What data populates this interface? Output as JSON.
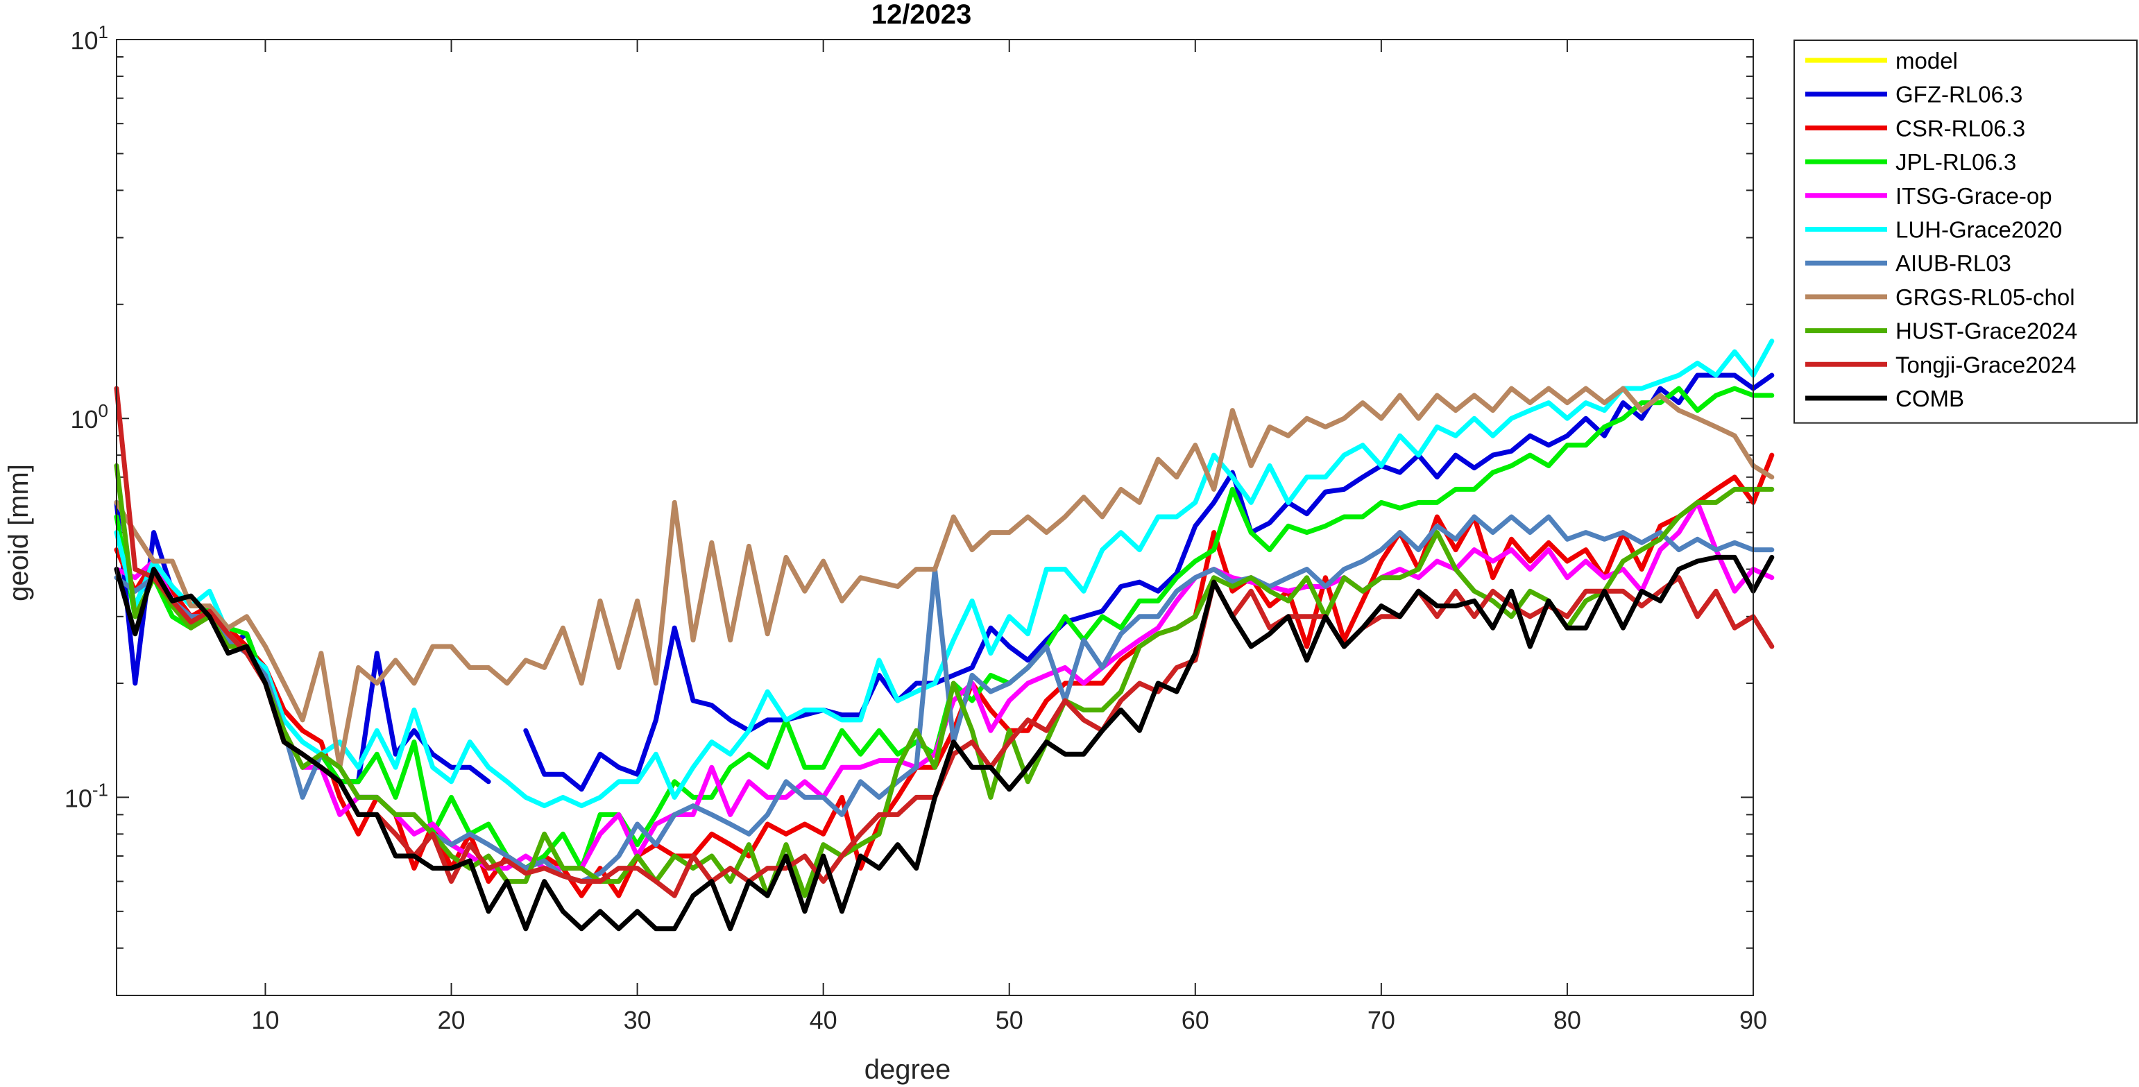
{
  "chart_data": {
    "type": "line",
    "title": "12/2023",
    "xlabel": "degree",
    "ylabel": "geoid [mm]",
    "xlim": [
      2,
      90
    ],
    "ylim": [
      0.03,
      10
    ],
    "yscale": "log",
    "grid": false,
    "legend_position": "outside-top-right",
    "x_ticks": [
      10,
      20,
      30,
      40,
      50,
      60,
      70,
      80,
      90
    ],
    "y_ticks": [
      {
        "value": 0.1,
        "base": "10",
        "exp": "-1"
      },
      {
        "value": 1,
        "base": "10",
        "exp": "0"
      },
      {
        "value": 10,
        "base": "10",
        "exp": "1"
      }
    ],
    "x_start": 2,
    "series": [
      {
        "name": "model",
        "color": "#FFFF00",
        "values": []
      },
      {
        "name": "GFZ-RL06.3",
        "color": "#0000DD",
        "values": [
          0.6,
          0.2,
          0.5,
          0.35,
          0.3,
          0.3,
          0.25,
          0.27,
          0.2,
          0.15,
          0.12,
          0.13,
          0.11,
          0.11,
          0.24,
          0.13,
          0.15,
          0.13,
          0.12,
          0.12,
          0.11,
          null,
          0.15,
          0.115,
          0.115,
          0.105,
          0.13,
          0.12,
          0.115,
          0.16,
          0.28,
          0.18,
          0.175,
          0.16,
          0.15,
          0.16,
          0.16,
          0.165,
          0.17,
          0.165,
          0.165,
          0.21,
          0.18,
          0.2,
          0.2,
          0.21,
          0.22,
          0.28,
          0.25,
          0.23,
          0.26,
          0.29,
          0.3,
          0.31,
          0.36,
          0.37,
          0.35,
          0.39,
          0.52,
          0.6,
          0.72,
          0.5,
          0.53,
          0.6,
          0.56,
          0.64,
          0.65,
          0.7,
          0.75,
          0.72,
          0.8,
          0.7,
          0.8,
          0.74,
          0.8,
          0.82,
          0.9,
          0.85,
          0.9,
          1.0,
          0.9,
          1.1,
          1.0,
          1.2,
          1.1,
          1.3,
          1.3,
          1.3,
          1.2,
          1.3
        ]
      },
      {
        "name": "CSR-RL06.3",
        "color": "#EE0000",
        "values": [
          0.45,
          0.35,
          0.42,
          0.35,
          0.3,
          0.32,
          0.28,
          0.25,
          0.22,
          0.17,
          0.15,
          0.14,
          0.1,
          0.08,
          0.1,
          0.09,
          0.065,
          0.085,
          0.065,
          0.08,
          0.06,
          0.07,
          0.065,
          0.07,
          0.065,
          0.055,
          0.065,
          0.055,
          0.07,
          0.075,
          0.07,
          0.07,
          0.08,
          0.075,
          0.07,
          0.085,
          0.08,
          0.085,
          0.08,
          0.1,
          0.065,
          0.085,
          0.1,
          0.12,
          0.12,
          0.15,
          0.2,
          0.17,
          0.15,
          0.15,
          0.18,
          0.2,
          0.2,
          0.2,
          0.23,
          0.25,
          0.27,
          0.28,
          0.3,
          0.5,
          0.35,
          0.38,
          0.32,
          0.35,
          0.25,
          0.38,
          0.26,
          0.33,
          0.42,
          0.5,
          0.4,
          0.55,
          0.45,
          0.55,
          0.38,
          0.48,
          0.42,
          0.47,
          0.42,
          0.45,
          0.38,
          0.5,
          0.4,
          0.52,
          0.55,
          0.6,
          0.65,
          0.7,
          0.6,
          0.8
        ]
      },
      {
        "name": "JPL-RL06.3",
        "color": "#00EE00",
        "values": [
          0.55,
          0.3,
          0.38,
          0.3,
          0.28,
          0.32,
          0.28,
          0.27,
          0.2,
          0.15,
          0.12,
          0.13,
          0.11,
          0.11,
          0.13,
          0.1,
          0.14,
          0.08,
          0.1,
          0.08,
          0.085,
          0.07,
          0.065,
          0.07,
          0.08,
          0.065,
          0.09,
          0.09,
          0.075,
          0.09,
          0.11,
          0.1,
          0.1,
          0.12,
          0.13,
          0.12,
          0.16,
          0.12,
          0.12,
          0.15,
          0.13,
          0.15,
          0.13,
          0.14,
          0.13,
          0.2,
          0.18,
          0.21,
          0.2,
          0.22,
          0.25,
          0.3,
          0.26,
          0.3,
          0.28,
          0.33,
          0.33,
          0.38,
          0.42,
          0.45,
          0.65,
          0.5,
          0.45,
          0.52,
          0.5,
          0.52,
          0.55,
          0.55,
          0.6,
          0.58,
          0.6,
          0.6,
          0.65,
          0.65,
          0.72,
          0.75,
          0.8,
          0.75,
          0.85,
          0.85,
          0.95,
          1.0,
          1.1,
          1.1,
          1.2,
          1.05,
          1.15,
          1.2,
          1.15,
          1.15
        ]
      },
      {
        "name": "ITSG-Grace-op",
        "color": "#FF00FF",
        "values": [
          0.4,
          0.38,
          0.42,
          0.33,
          0.3,
          0.3,
          0.27,
          0.24,
          0.21,
          0.15,
          0.12,
          0.12,
          0.09,
          0.1,
          0.1,
          0.09,
          0.08,
          0.085,
          0.075,
          0.07,
          0.065,
          0.065,
          0.07,
          0.065,
          0.065,
          0.065,
          0.08,
          0.09,
          0.07,
          0.085,
          0.09,
          0.09,
          0.12,
          0.09,
          0.11,
          0.1,
          0.1,
          0.11,
          0.1,
          0.12,
          0.12,
          0.125,
          0.125,
          0.12,
          0.13,
          0.18,
          0.2,
          0.15,
          0.18,
          0.2,
          0.21,
          0.22,
          0.2,
          0.22,
          0.24,
          0.26,
          0.28,
          0.33,
          0.38,
          0.4,
          0.38,
          0.37,
          0.36,
          0.35,
          0.36,
          0.36,
          0.38,
          0.35,
          0.38,
          0.4,
          0.38,
          0.42,
          0.4,
          0.45,
          0.42,
          0.45,
          0.4,
          0.45,
          0.38,
          0.42,
          0.38,
          0.4,
          0.35,
          0.45,
          0.5,
          0.6,
          0.45,
          0.35,
          0.4,
          0.38
        ]
      },
      {
        "name": "LUH-Grace2020",
        "color": "#00FFFF",
        "values": [
          0.5,
          0.32,
          0.42,
          0.36,
          0.32,
          0.35,
          0.27,
          0.24,
          0.22,
          0.16,
          0.14,
          0.13,
          0.14,
          0.12,
          0.15,
          0.12,
          0.17,
          0.12,
          0.11,
          0.14,
          0.12,
          0.11,
          0.1,
          0.095,
          0.1,
          0.095,
          0.1,
          0.11,
          0.11,
          0.13,
          0.1,
          0.12,
          0.14,
          0.13,
          0.15,
          0.19,
          0.16,
          0.17,
          0.17,
          0.16,
          0.16,
          0.23,
          0.18,
          0.19,
          0.2,
          0.26,
          0.33,
          0.24,
          0.3,
          0.27,
          0.4,
          0.4,
          0.35,
          0.45,
          0.5,
          0.45,
          0.55,
          0.55,
          0.6,
          0.8,
          0.7,
          0.6,
          0.75,
          0.6,
          0.7,
          0.7,
          0.8,
          0.85,
          0.75,
          0.9,
          0.8,
          0.95,
          0.9,
          1.0,
          0.9,
          1.0,
          1.05,
          1.1,
          1.0,
          1.1,
          1.05,
          1.2,
          1.2,
          1.25,
          1.3,
          1.4,
          1.3,
          1.5,
          1.3,
          1.6
        ]
      },
      {
        "name": "AIUB-RL03",
        "color": "#4F81BD",
        "values": [
          0.38,
          0.35,
          0.38,
          0.33,
          0.3,
          0.3,
          0.26,
          0.24,
          0.21,
          0.15,
          0.1,
          0.13,
          0.12,
          0.1,
          0.1,
          0.09,
          0.09,
          0.08,
          0.075,
          0.08,
          0.075,
          0.07,
          0.065,
          0.068,
          0.062,
          0.06,
          0.063,
          0.07,
          0.085,
          0.075,
          0.09,
          0.095,
          0.09,
          0.085,
          0.08,
          0.09,
          0.11,
          0.1,
          0.1,
          0.09,
          0.11,
          0.1,
          0.11,
          0.12,
          0.4,
          0.14,
          0.21,
          0.19,
          0.2,
          0.22,
          0.25,
          0.18,
          0.26,
          0.22,
          0.27,
          0.3,
          0.3,
          0.35,
          0.38,
          0.4,
          0.37,
          0.38,
          0.36,
          0.38,
          0.4,
          0.36,
          0.4,
          0.42,
          0.45,
          0.5,
          0.45,
          0.52,
          0.48,
          0.55,
          0.5,
          0.55,
          0.5,
          0.55,
          0.48,
          0.5,
          0.48,
          0.5,
          0.47,
          0.5,
          0.45,
          0.48,
          0.45,
          0.47,
          0.45,
          0.45
        ]
      },
      {
        "name": "GRGS-RL05-chol",
        "color": "#B8865F",
        "values": [
          0.6,
          0.5,
          0.42,
          0.42,
          0.32,
          0.32,
          0.28,
          0.3,
          0.25,
          0.2,
          0.16,
          0.24,
          0.12,
          0.22,
          0.2,
          0.23,
          0.2,
          0.25,
          0.25,
          0.22,
          0.22,
          0.2,
          0.23,
          0.22,
          0.28,
          0.2,
          0.33,
          0.22,
          0.33,
          0.2,
          0.6,
          0.26,
          0.47,
          0.26,
          0.46,
          0.27,
          0.43,
          0.35,
          0.42,
          0.33,
          0.38,
          0.37,
          0.36,
          0.4,
          0.4,
          0.55,
          0.45,
          0.5,
          0.5,
          0.55,
          0.5,
          0.55,
          0.62,
          0.55,
          0.65,
          0.6,
          0.78,
          0.7,
          0.85,
          0.65,
          1.05,
          0.75,
          0.95,
          0.9,
          1.0,
          0.95,
          1.0,
          1.1,
          1.0,
          1.15,
          1.0,
          1.15,
          1.05,
          1.15,
          1.05,
          1.2,
          1.1,
          1.2,
          1.1,
          1.2,
          1.1,
          1.2,
          1.05,
          1.15,
          1.05,
          1.0,
          0.95,
          0.9,
          0.75,
          0.7
        ]
      },
      {
        "name": "HUST-Grace2024",
        "color": "#4CAF00",
        "values": [
          0.75,
          0.3,
          0.38,
          0.32,
          0.28,
          0.3,
          0.25,
          0.25,
          0.2,
          0.15,
          0.12,
          0.13,
          0.12,
          0.1,
          0.1,
          0.09,
          0.09,
          0.08,
          0.07,
          0.065,
          0.07,
          0.06,
          0.06,
          0.08,
          0.065,
          0.065,
          0.06,
          0.06,
          0.07,
          0.06,
          0.07,
          0.065,
          0.07,
          0.06,
          0.075,
          0.055,
          0.075,
          0.055,
          0.075,
          0.07,
          0.075,
          0.08,
          0.12,
          0.15,
          0.12,
          0.2,
          0.15,
          0.1,
          0.15,
          0.11,
          0.14,
          0.18,
          0.17,
          0.17,
          0.19,
          0.25,
          0.27,
          0.28,
          0.3,
          0.38,
          0.36,
          0.38,
          0.35,
          0.33,
          0.38,
          0.3,
          0.38,
          0.35,
          0.38,
          0.38,
          0.4,
          0.5,
          0.4,
          0.35,
          0.33,
          0.3,
          0.35,
          0.33,
          0.28,
          0.33,
          0.35,
          0.42,
          0.45,
          0.48,
          0.55,
          0.6,
          0.6,
          0.65,
          0.65,
          0.65
        ]
      },
      {
        "name": "Tongji-Grace2024",
        "color": "#CC2222",
        "values": [
          1.2,
          0.4,
          0.38,
          0.33,
          0.29,
          0.31,
          0.27,
          0.24,
          0.2,
          0.14,
          0.13,
          0.12,
          0.11,
          0.09,
          0.09,
          0.08,
          0.07,
          0.08,
          0.06,
          0.075,
          0.065,
          0.068,
          0.063,
          0.065,
          0.062,
          0.06,
          0.06,
          0.065,
          0.065,
          0.06,
          0.055,
          0.07,
          0.06,
          0.065,
          0.06,
          0.065,
          0.065,
          0.07,
          0.06,
          0.07,
          0.08,
          0.09,
          0.09,
          0.1,
          0.1,
          0.13,
          0.14,
          0.12,
          0.14,
          0.16,
          0.15,
          0.18,
          0.16,
          0.15,
          0.18,
          0.2,
          0.19,
          0.22,
          0.23,
          0.37,
          0.3,
          0.35,
          0.28,
          0.3,
          0.3,
          0.3,
          0.25,
          0.28,
          0.3,
          0.3,
          0.35,
          0.3,
          0.35,
          0.3,
          0.35,
          0.32,
          0.3,
          0.32,
          0.3,
          0.35,
          0.35,
          0.35,
          0.32,
          0.35,
          0.38,
          0.3,
          0.35,
          0.28,
          0.3,
          0.25
        ]
      },
      {
        "name": "COMB",
        "color": "#000000",
        "values": [
          0.4,
          0.27,
          0.4,
          0.33,
          0.34,
          0.3,
          0.24,
          0.25,
          0.2,
          0.14,
          0.13,
          0.12,
          0.11,
          0.09,
          0.09,
          0.07,
          0.07,
          0.065,
          0.065,
          0.068,
          0.05,
          0.06,
          0.045,
          0.06,
          0.05,
          0.045,
          0.05,
          0.045,
          0.05,
          0.045,
          0.045,
          0.055,
          0.06,
          0.045,
          0.06,
          0.055,
          0.07,
          0.05,
          0.07,
          0.05,
          0.07,
          0.065,
          0.075,
          0.065,
          0.1,
          0.14,
          0.12,
          0.12,
          0.105,
          0.12,
          0.14,
          0.13,
          0.13,
          0.15,
          0.17,
          0.15,
          0.2,
          0.19,
          0.24,
          0.37,
          0.3,
          0.25,
          0.27,
          0.3,
          0.23,
          0.3,
          0.25,
          0.28,
          0.32,
          0.3,
          0.35,
          0.32,
          0.32,
          0.33,
          0.28,
          0.35,
          0.25,
          0.33,
          0.28,
          0.28,
          0.35,
          0.28,
          0.35,
          0.33,
          0.4,
          0.42,
          0.43,
          0.43,
          0.35,
          0.43
        ]
      }
    ]
  }
}
